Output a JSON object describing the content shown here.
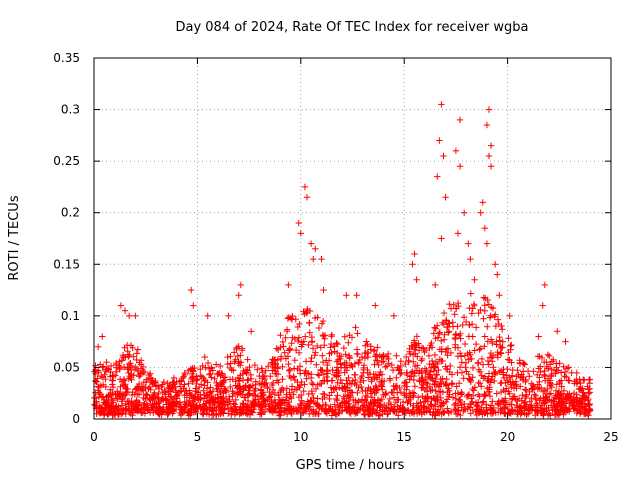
{
  "chart_data": {
    "type": "scatter",
    "title": "Day 084 of 2024, Rate Of TEC Index for receiver wgba",
    "xlabel": "GPS time / hours",
    "ylabel": "ROTI / TECUs",
    "xlim": [
      0,
      25
    ],
    "ylim": [
      0,
      0.35
    ],
    "xticks": [
      "0",
      "5",
      "10",
      "15",
      "20",
      "25"
    ],
    "yticks": [
      "0",
      "0.05",
      "0.1",
      "0.15",
      "0.2",
      "0.25",
      "0.3",
      "0.35"
    ],
    "grid": true,
    "marker": "+",
    "color": "#ff0000",
    "series": [
      {
        "values": [
          [
            0.2,
            0.07
          ],
          [
            0.4,
            0.08
          ],
          [
            1.3,
            0.11
          ],
          [
            1.5,
            0.105
          ],
          [
            1.7,
            0.1
          ],
          [
            2.0,
            0.1
          ],
          [
            4.7,
            0.125
          ],
          [
            4.8,
            0.11
          ],
          [
            5.5,
            0.1
          ],
          [
            6.5,
            0.1
          ],
          [
            7.1,
            0.13
          ],
          [
            7.0,
            0.12
          ],
          [
            7.6,
            0.085
          ],
          [
            9.4,
            0.13
          ],
          [
            9.9,
            0.19
          ],
          [
            10.0,
            0.18
          ],
          [
            10.2,
            0.225
          ],
          [
            10.3,
            0.215
          ],
          [
            10.5,
            0.17
          ],
          [
            10.7,
            0.165
          ],
          [
            10.6,
            0.155
          ],
          [
            11.0,
            0.155
          ],
          [
            11.1,
            0.125
          ],
          [
            12.2,
            0.12
          ],
          [
            12.7,
            0.12
          ],
          [
            13.6,
            0.11
          ],
          [
            14.5,
            0.1
          ],
          [
            15.4,
            0.15
          ],
          [
            15.5,
            0.16
          ],
          [
            15.6,
            0.135
          ],
          [
            16.5,
            0.13
          ],
          [
            16.8,
            0.305
          ],
          [
            16.7,
            0.27
          ],
          [
            16.9,
            0.255
          ],
          [
            16.6,
            0.235
          ],
          [
            17.0,
            0.215
          ],
          [
            16.8,
            0.175
          ],
          [
            17.5,
            0.26
          ],
          [
            17.7,
            0.245
          ],
          [
            17.7,
            0.29
          ],
          [
            17.6,
            0.18
          ],
          [
            17.9,
            0.2
          ],
          [
            18.1,
            0.17
          ],
          [
            18.2,
            0.155
          ],
          [
            18.4,
            0.135
          ],
          [
            18.7,
            0.2
          ],
          [
            18.8,
            0.21
          ],
          [
            18.9,
            0.185
          ],
          [
            19.0,
            0.17
          ],
          [
            19.1,
            0.3
          ],
          [
            19.0,
            0.285
          ],
          [
            19.2,
            0.265
          ],
          [
            19.1,
            0.255
          ],
          [
            19.2,
            0.245
          ],
          [
            19.4,
            0.15
          ],
          [
            19.5,
            0.14
          ],
          [
            19.6,
            0.12
          ],
          [
            20.1,
            0.1
          ],
          [
            21.8,
            0.13
          ],
          [
            21.7,
            0.11
          ],
          [
            21.5,
            0.08
          ],
          [
            22.4,
            0.085
          ],
          [
            22.8,
            0.075
          ]
        ]
      }
    ]
  }
}
